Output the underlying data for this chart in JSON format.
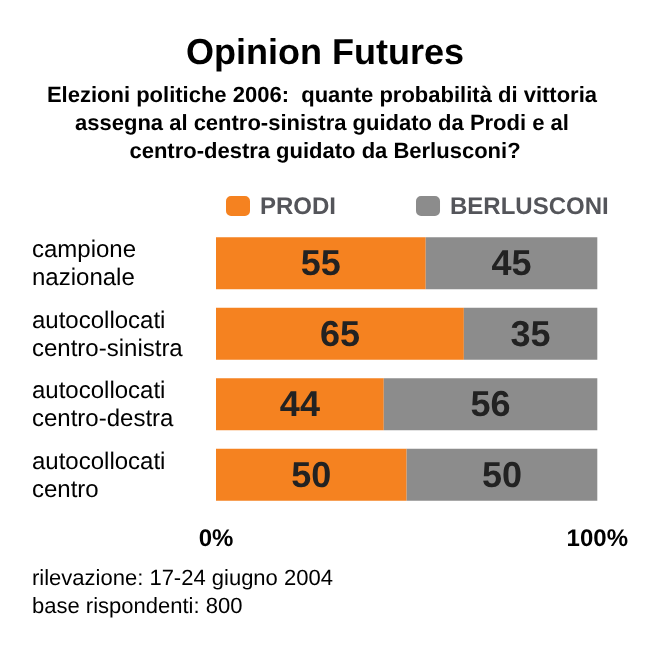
{
  "chart_data": {
    "type": "bar",
    "title": "Opinion Futures",
    "subtitle": "Elezioni politiche 2006:  quante probabilità di vittoria assegna al centro-sinistra guidato da Prodi e al centro-destra guidato da Berlusconi?",
    "orientation": "horizontal",
    "stacked": true,
    "categories": [
      "campione nazionale",
      "autocollocati centro-sinistra",
      "autocollocati centro-destra",
      "autocollocati centro"
    ],
    "series": [
      {
        "name": "PRODI",
        "color": "#f58220",
        "values": [
          55,
          65,
          44,
          50
        ]
      },
      {
        "name": "BERLUSCONI",
        "color": "#8c8c8c",
        "values": [
          45,
          35,
          56,
          50
        ]
      }
    ],
    "xlim": [
      0,
      100
    ],
    "xticks": [
      {
        "value": 0,
        "label": "0%"
      },
      {
        "value": 100,
        "label": "100%"
      }
    ],
    "data_labels": true,
    "legend": "top",
    "annotations": [
      "rilevazione: 17-24 giugno 2004",
      "base rispondenti: 800"
    ]
  }
}
